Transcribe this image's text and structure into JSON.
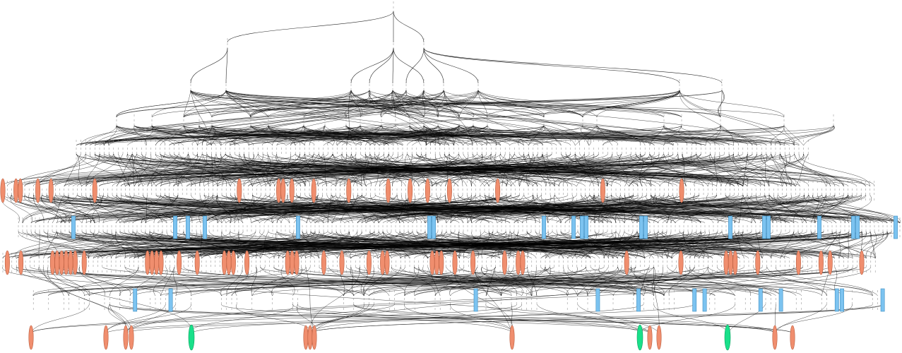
{
  "diagram": {
    "kind": "hierarchical-dependency-graph",
    "colors": {
      "background": "#ffffff",
      "edge": "#000000",
      "plain_node_outline": "#aaaaaa",
      "orange_node": "#f08e6e",
      "blue_node": "#7cc3f0",
      "green_node": "#19e08a"
    },
    "legend": [],
    "title": ""
  }
}
